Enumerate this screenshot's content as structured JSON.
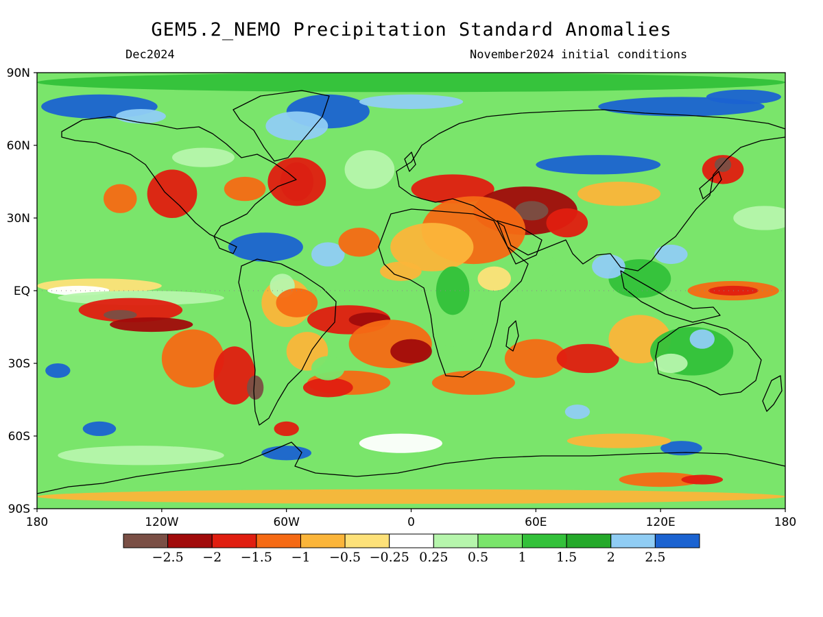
{
  "header": {
    "title": "GEM5.2_NEMO Precipitation Standard Anomalies",
    "left_subtitle": "Dec2024",
    "right_subtitle": "November2024 initial conditions"
  },
  "axes": {
    "lat_labels": [
      "90N",
      "60N",
      "30N",
      "EQ",
      "30S",
      "60S",
      "90S"
    ],
    "lon_labels": [
      "180",
      "120W",
      "60W",
      "0",
      "60E",
      "120E",
      "180"
    ]
  },
  "colorbar": {
    "labels": [
      "−2.5",
      "−2",
      "−1.5",
      "−1",
      "−0.5",
      "−0.25",
      "0.25",
      "0.5",
      "1",
      "1.5",
      "2",
      "2.5"
    ],
    "colors": [
      "#7a4f45",
      "#a10b0b",
      "#e01e10",
      "#f56a14",
      "#fbb53a",
      "#fde179",
      "#ffffff",
      "#b6f5ac",
      "#7ae56b",
      "#33c13a",
      "#25a92a",
      "#90cdf4",
      "#1b63d1"
    ]
  },
  "map": {
    "projection": "cylindrical equidistant, global",
    "colors": {
      "strong_dry": "#7a4f45",
      "very_dry": "#a10b0b",
      "dry": "#e01e10",
      "moderately_dry": "#f56a14",
      "slightly_dry": "#fbb53a",
      "near_normal_dry": "#fde179",
      "normal": "#ffffff",
      "near_normal_wet": "#b6f5ac",
      "slightly_wet": "#7ae56b",
      "wet": "#33c13a",
      "very_wet": "#25a92a",
      "strong_wet": "#90cdf4",
      "extreme_wet": "#1b63d1"
    }
  }
}
